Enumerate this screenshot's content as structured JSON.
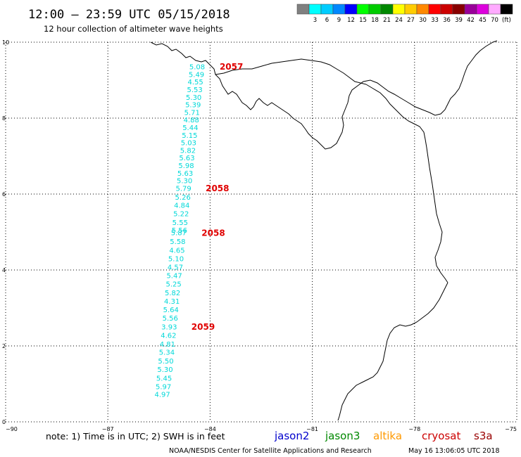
{
  "title": "12:00 – 23:59 UTC 05/15/2018",
  "subtitle": "12 hour collection of altimeter wave heights",
  "color_scale": {
    "unit": "(ft)",
    "entries": [
      {
        "label": "",
        "color": "#808080"
      },
      {
        "label": "3",
        "color": "#00ffff"
      },
      {
        "label": "6",
        "color": "#00ccff"
      },
      {
        "label": "9",
        "color": "#0088ff"
      },
      {
        "label": "12",
        "color": "#0000ff"
      },
      {
        "label": "15",
        "color": "#00ff00"
      },
      {
        "label": "18",
        "color": "#00cc00"
      },
      {
        "label": "21",
        "color": "#008800"
      },
      {
        "label": "24",
        "color": "#ffff00"
      },
      {
        "label": "27",
        "color": "#ffcc00"
      },
      {
        "label": "30",
        "color": "#ff8800"
      },
      {
        "label": "33",
        "color": "#ff0000"
      },
      {
        "label": "36",
        "color": "#cc0000"
      },
      {
        "label": "39",
        "color": "#880000"
      },
      {
        "label": "42",
        "color": "#990099"
      },
      {
        "label": "45",
        "color": "#dd00dd"
      },
      {
        "label": "70",
        "color": "#ffaaff"
      },
      {
        "label": "",
        "color": "#000000"
      }
    ]
  },
  "axes": {
    "lon_ticks": [
      {
        "value": -90,
        "label": "−90"
      },
      {
        "value": -87,
        "label": "−87"
      },
      {
        "value": -84,
        "label": "−84"
      },
      {
        "value": -81,
        "label": "−81"
      },
      {
        "value": -78,
        "label": "−78"
      },
      {
        "value": -75,
        "label": "−75"
      }
    ],
    "lat_ticks": [
      {
        "value": 0,
        "label": "0"
      },
      {
        "value": 2,
        "label": "2"
      },
      {
        "value": 4,
        "label": "4"
      },
      {
        "value": 6,
        "label": "6"
      },
      {
        "value": 8,
        "label": "8"
      },
      {
        "value": 10,
        "label": "10"
      }
    ],
    "lon_range": [
      -90,
      -75
    ],
    "lat_range": [
      0,
      10
    ],
    "grid": true
  },
  "wave_heights": [
    {
      "lat": 9.35,
      "lon": -84.38,
      "value": "5.08"
    },
    {
      "lat": 9.15,
      "lon": -84.4,
      "value": "5.49"
    },
    {
      "lat": 8.95,
      "lon": -84.43,
      "value": "4.55"
    },
    {
      "lat": 8.75,
      "lon": -84.45,
      "value": "5.53"
    },
    {
      "lat": 8.55,
      "lon": -84.48,
      "value": "5.30"
    },
    {
      "lat": 8.35,
      "lon": -84.5,
      "value": "5.39"
    },
    {
      "lat": 8.15,
      "lon": -84.53,
      "value": "5.71"
    },
    {
      "lat": 7.95,
      "lon": -84.55,
      "value": "4.88"
    },
    {
      "lat": 7.75,
      "lon": -84.58,
      "value": "5.44"
    },
    {
      "lat": 7.55,
      "lon": -84.6,
      "value": "5.15"
    },
    {
      "lat": 7.35,
      "lon": -84.63,
      "value": "5.03"
    },
    {
      "lat": 7.15,
      "lon": -84.65,
      "value": "5.82"
    },
    {
      "lat": 6.95,
      "lon": -84.68,
      "value": "5.63"
    },
    {
      "lat": 6.75,
      "lon": -84.7,
      "value": "5.98"
    },
    {
      "lat": 6.55,
      "lon": -84.73,
      "value": "5.63"
    },
    {
      "lat": 6.35,
      "lon": -84.75,
      "value": "5.30"
    },
    {
      "lat": 6.15,
      "lon": -84.78,
      "value": "5.79"
    },
    {
      "lat": 5.92,
      "lon": -84.8,
      "value": "5.26"
    },
    {
      "lat": 5.7,
      "lon": -84.83,
      "value": "4.84"
    },
    {
      "lat": 5.48,
      "lon": -84.85,
      "value": "5.22"
    },
    {
      "lat": 5.25,
      "lon": -84.88,
      "value": "5.55"
    },
    {
      "lat": 5.05,
      "lon": -84.9,
      "value": "5.56"
    },
    {
      "lat": 4.98,
      "lon": -84.92,
      "value": "5.87"
    },
    {
      "lat": 4.75,
      "lon": -84.95,
      "value": "5.58"
    },
    {
      "lat": 4.52,
      "lon": -84.97,
      "value": "4.65"
    },
    {
      "lat": 4.3,
      "lon": -85.0,
      "value": "5.10"
    },
    {
      "lat": 4.07,
      "lon": -85.02,
      "value": "4.57"
    },
    {
      "lat": 3.85,
      "lon": -85.05,
      "value": "5.47"
    },
    {
      "lat": 3.63,
      "lon": -85.07,
      "value": "5.25"
    },
    {
      "lat": 3.4,
      "lon": -85.1,
      "value": "5.82"
    },
    {
      "lat": 3.18,
      "lon": -85.12,
      "value": "4.31"
    },
    {
      "lat": 2.95,
      "lon": -85.15,
      "value": "5.64"
    },
    {
      "lat": 2.73,
      "lon": -85.17,
      "value": "5.56"
    },
    {
      "lat": 2.5,
      "lon": -85.2,
      "value": "3.93"
    },
    {
      "lat": 2.28,
      "lon": -85.22,
      "value": "4.62"
    },
    {
      "lat": 2.05,
      "lon": -85.25,
      "value": "4.81"
    },
    {
      "lat": 1.83,
      "lon": -85.27,
      "value": "5.34"
    },
    {
      "lat": 1.6,
      "lon": -85.3,
      "value": "5.50"
    },
    {
      "lat": 1.38,
      "lon": -85.32,
      "value": "5.30"
    },
    {
      "lat": 1.15,
      "lon": -85.35,
      "value": "5.45"
    },
    {
      "lat": 0.93,
      "lon": -85.37,
      "value": "5.97"
    },
    {
      "lat": 0.72,
      "lon": -85.4,
      "value": "4.97"
    }
  ],
  "pass_labels": [
    {
      "lat": 9.35,
      "lon": -83.72,
      "value": "2057"
    },
    {
      "lat": 6.15,
      "lon": -84.13,
      "value": "2058"
    },
    {
      "lat": 4.97,
      "lon": -84.25,
      "value": "2058"
    },
    {
      "lat": 2.5,
      "lon": -84.55,
      "value": "2059"
    }
  ],
  "note": "note: 1) Time is in UTC; 2) SWH is in feet",
  "satellites": [
    {
      "name": "jason2",
      "color": "#0000cc"
    },
    {
      "name": "jason3",
      "color": "#008800"
    },
    {
      "name": "altika",
      "color": "#ff9900"
    },
    {
      "name": "cryosat",
      "color": "#cc0000"
    },
    {
      "name": "s3a",
      "color": "#990000"
    }
  ],
  "credit": "NOAA/NESDIS Center for Satellite Applications and Research",
  "timestamp": "May 16 13:06:05 UTC 2018"
}
